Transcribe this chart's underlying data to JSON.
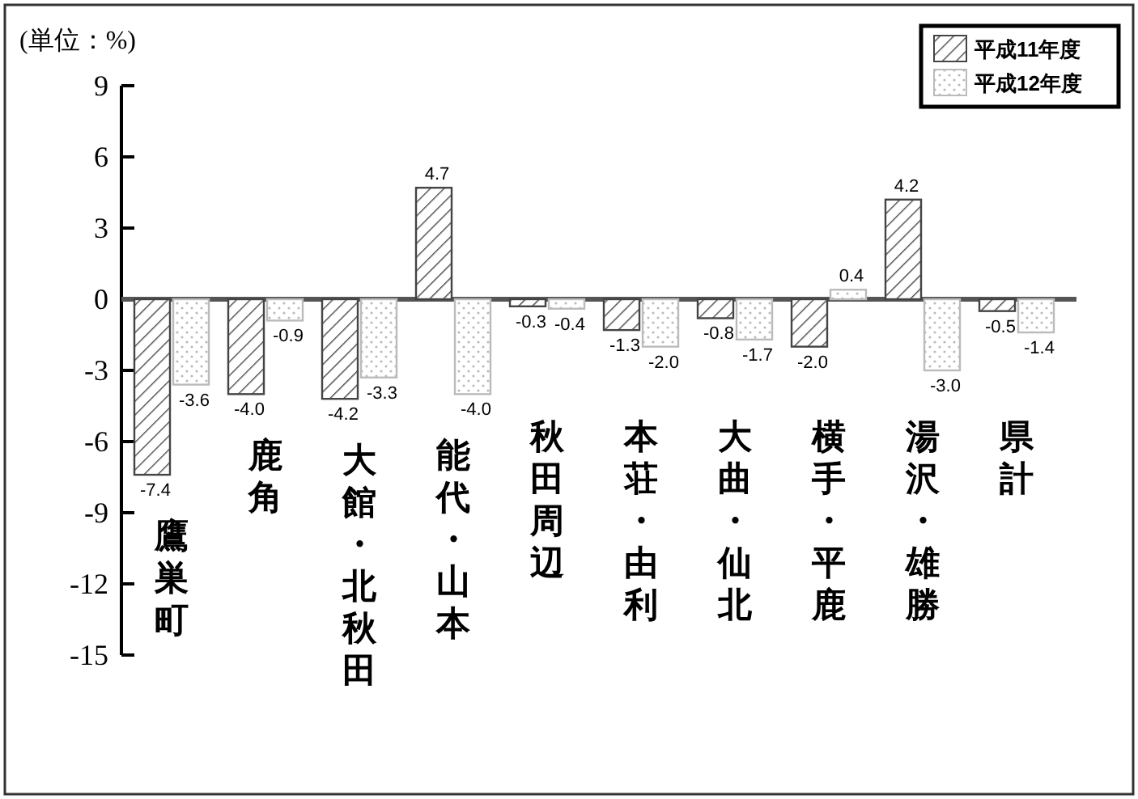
{
  "chart_data": {
    "type": "bar",
    "ylabel": "(単位：%)",
    "categories": [
      "鷹巣町",
      "鹿角",
      "大館・北秋田",
      "能代・山本",
      "秋田周辺",
      "本荘・由利",
      "大曲・仙北",
      "横手・平鹿",
      "湯沢・雄勝",
      "県計"
    ],
    "series": [
      {
        "name": "平成11年度",
        "color": "#444444",
        "values": [
          -7.4,
          -4.0,
          -4.2,
          4.7,
          -0.3,
          -1.3,
          -0.8,
          -2.0,
          4.2,
          -0.5
        ],
        "value_labels": [
          "-7.4",
          "-4.0",
          "-4.2",
          "4.7",
          "-0.3",
          "-1.3",
          "-0.8",
          "-2.0",
          "4.2",
          "-0.5"
        ]
      },
      {
        "name": "平成12年度",
        "color": "#bbbbbb",
        "values": [
          -3.6,
          -0.9,
          -3.3,
          -4.0,
          -0.4,
          -2.0,
          -1.7,
          0.4,
          -3.0,
          -1.4
        ],
        "value_labels": [
          "-3.6",
          "-0.9",
          "-3.3",
          "-4.0",
          "-0.4",
          "-2.0",
          "-1.7",
          "0.4",
          "-3.0",
          "-1.4"
        ]
      }
    ],
    "ylim": [
      -15,
      9
    ],
    "yticks": [
      9,
      6,
      3,
      0,
      -3,
      -6,
      -9,
      -12,
      -15
    ],
    "legend": "top right"
  }
}
